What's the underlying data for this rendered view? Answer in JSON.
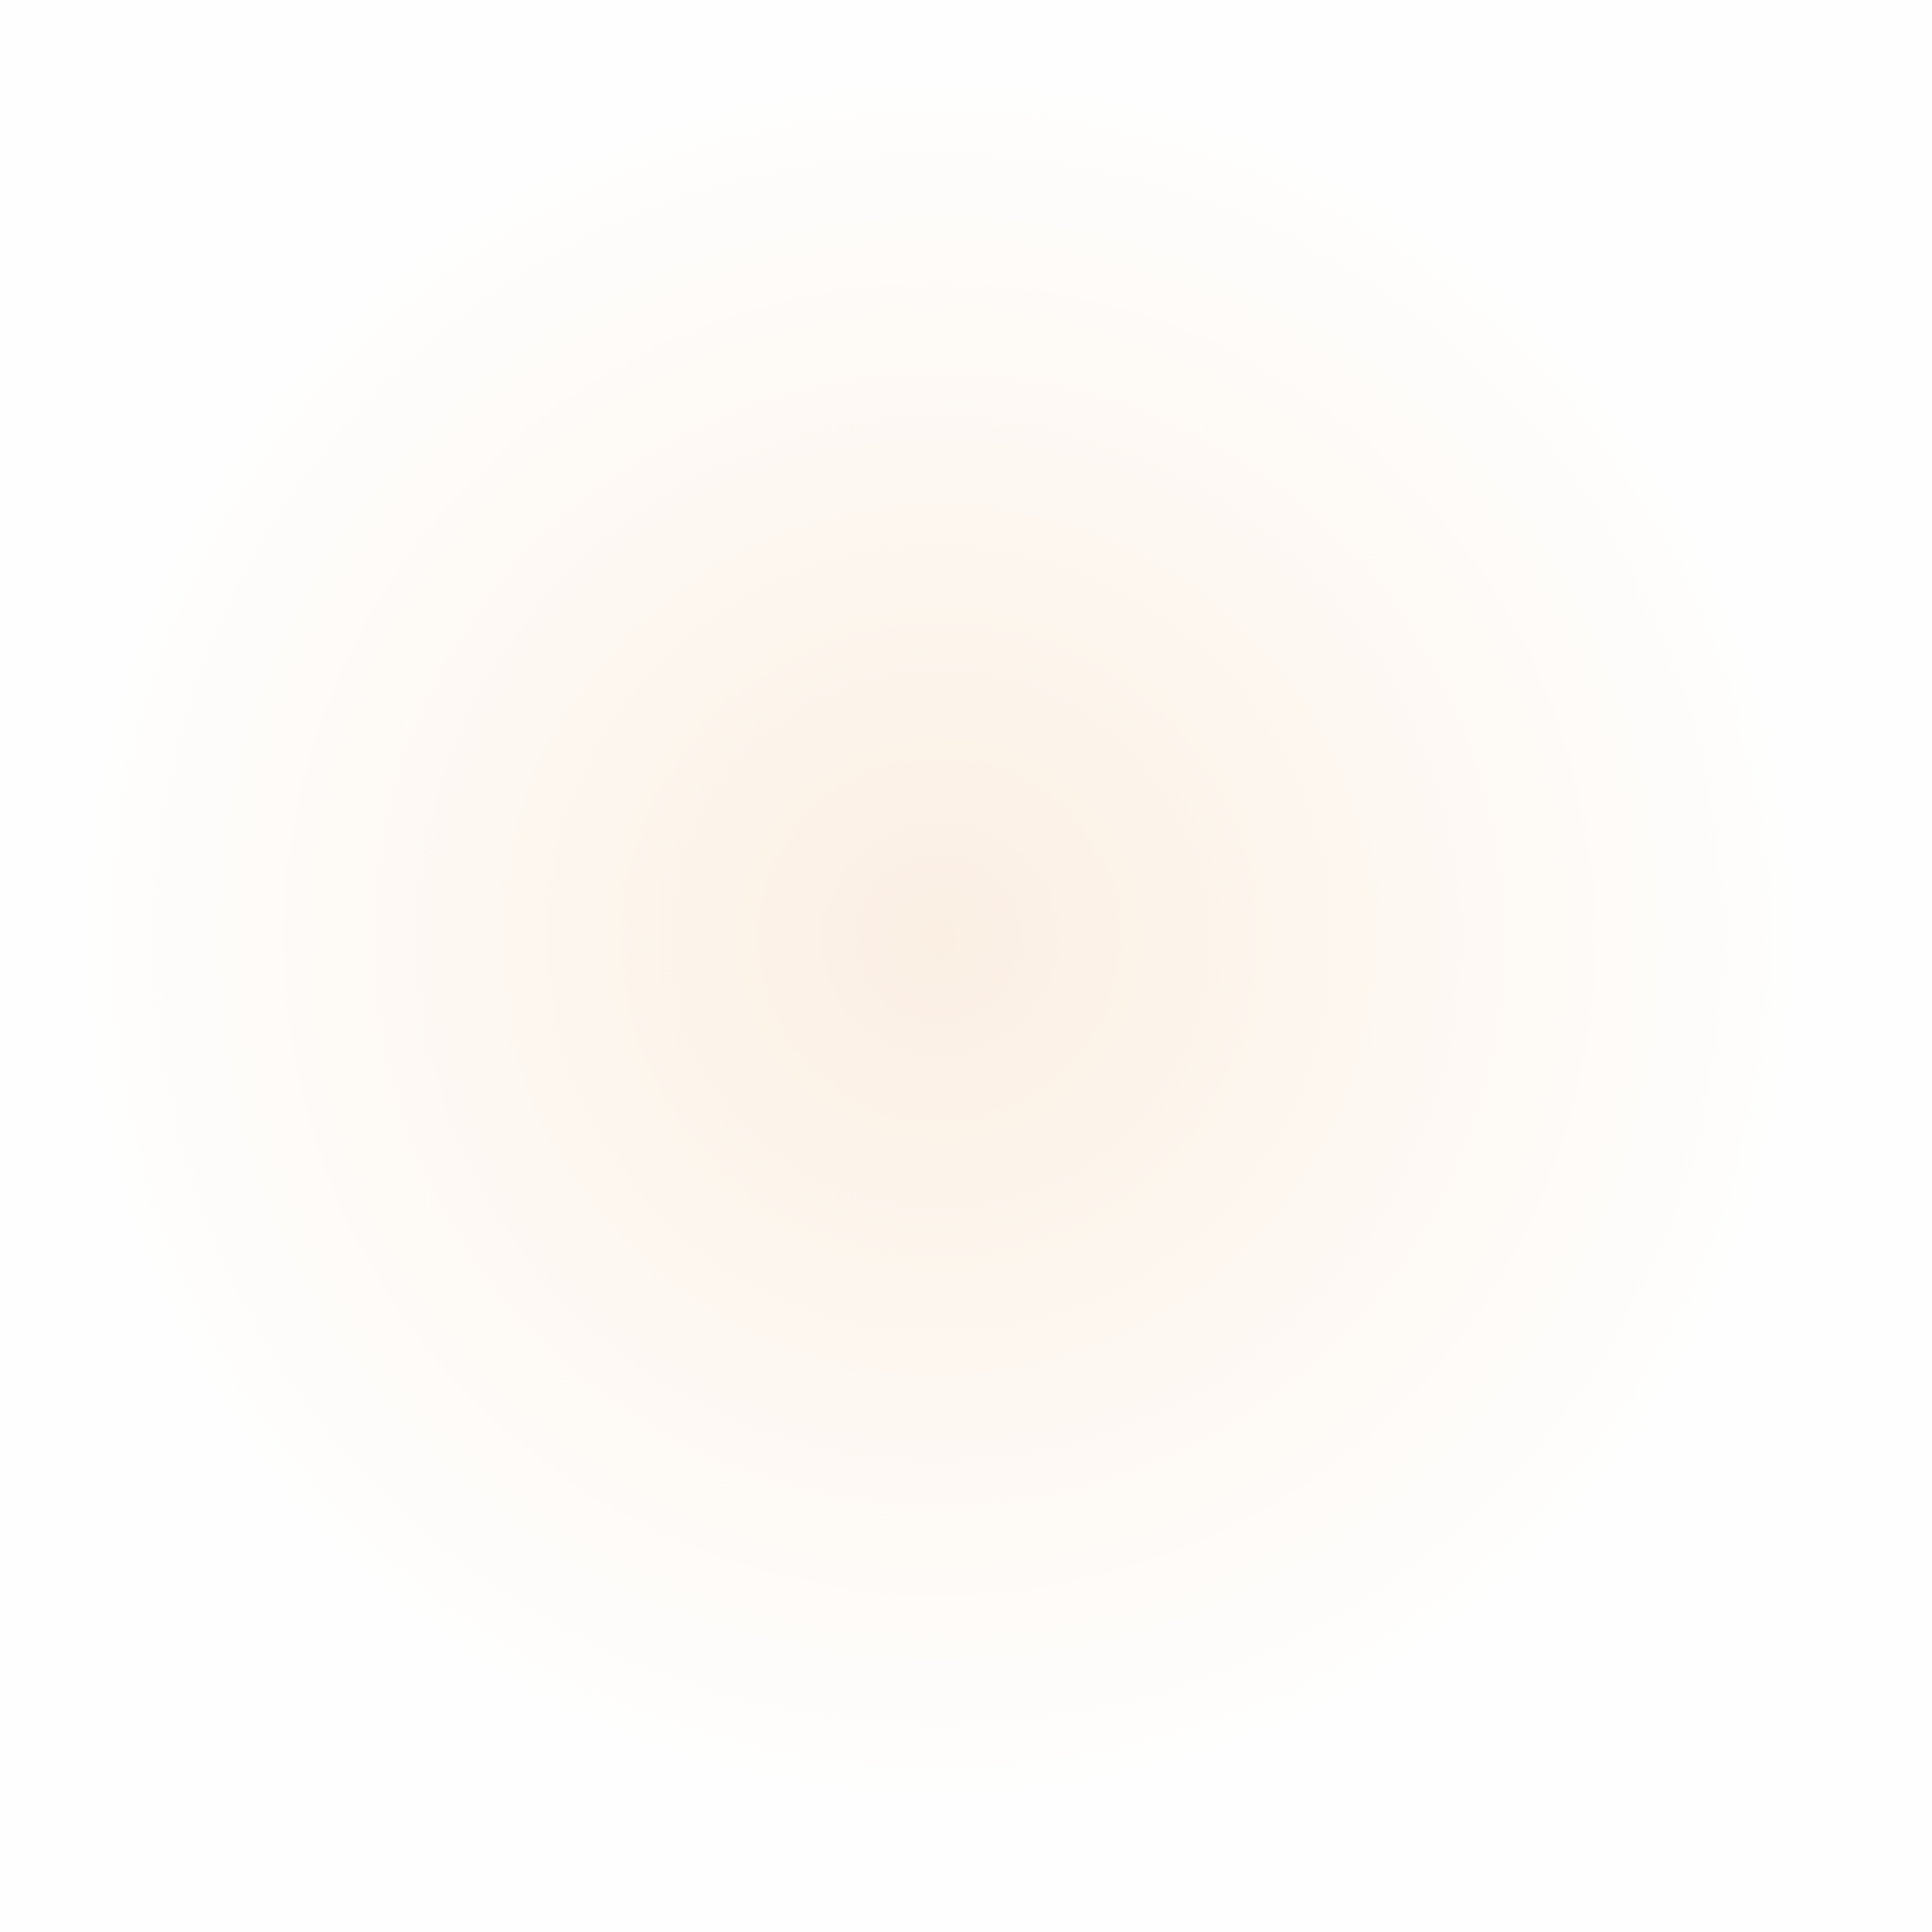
{
  "background": {
    "base_color": "#fefefe",
    "glow_center_color": "#fbefe3",
    "glow_mid_color": "#fdf6ee"
  }
}
